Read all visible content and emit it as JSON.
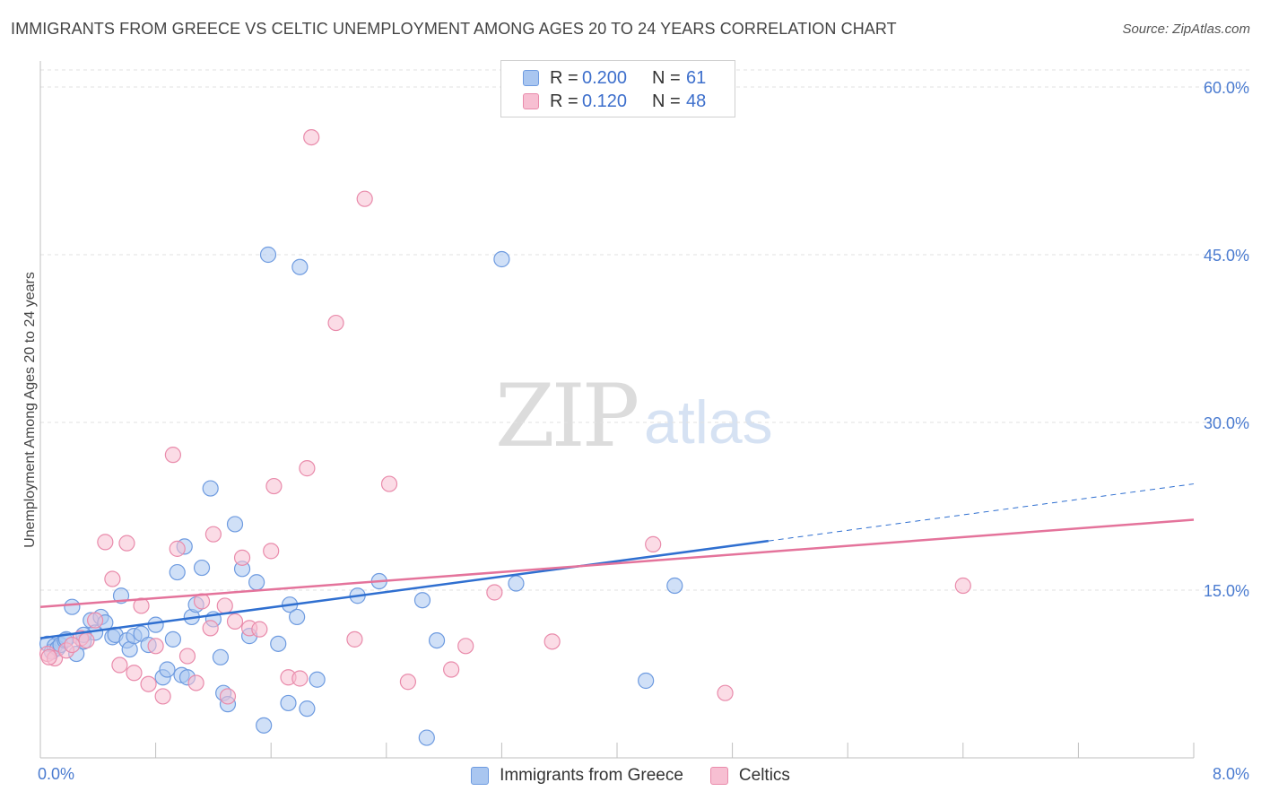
{
  "header": {
    "title": "IMMIGRANTS FROM GREECE VS CELTIC UNEMPLOYMENT AMONG AGES 20 TO 24 YEARS CORRELATION CHART",
    "source": "Source: ZipAtlas.com"
  },
  "watermark": {
    "zip": "ZIP",
    "atlas": "atlas"
  },
  "legend": {
    "rows": [
      {
        "r_label": "R =",
        "r_value": "0.200",
        "n_label": "N =",
        "n_value": "61",
        "color": "#a9c6f0",
        "border": "#6e9be0"
      },
      {
        "r_label": "R =",
        "r_value": "0.120",
        "n_label": "N =",
        "n_value": "48",
        "color": "#f7bfd2",
        "border": "#e98bab"
      }
    ]
  },
  "bottom_legend": {
    "items": [
      {
        "label": "Immigrants from Greece",
        "color": "#a9c6f0",
        "border": "#6e9be0"
      },
      {
        "label": "Celtics",
        "color": "#f7bfd2",
        "border": "#e98bab"
      }
    ]
  },
  "chart_data": {
    "type": "scatter",
    "title": "IMMIGRANTS FROM GREECE VS CELTIC UNEMPLOYMENT AMONG AGES 20 TO 24 YEARS CORRELATION CHART",
    "xlabel": "",
    "ylabel": "Unemployment Among Ages 20 to 24 years",
    "xlim": [
      0,
      8
    ],
    "ylim": [
      0,
      60
    ],
    "x_tick_labels": [
      "0.0%",
      "8.0%"
    ],
    "y_tick_values": [
      15,
      30,
      45,
      60
    ],
    "y_tick_labels": [
      "15.0%",
      "30.0%",
      "45.0%",
      "60.0%"
    ],
    "grid": true,
    "series": [
      {
        "name": "Immigrants from Greece",
        "color": "#6e9be0",
        "fill": "#a9c6f0",
        "line_color": "#2f6fd0",
        "trend": {
          "x0": 0.0,
          "y0": 10.7,
          "x1": 5.05,
          "y1": 19.4,
          "dash_to_x": 8.0,
          "dash_to_y": 24.5
        },
        "points": [
          [
            0.05,
            10.2
          ],
          [
            0.08,
            9.5
          ],
          [
            0.1,
            10.0
          ],
          [
            0.12,
            9.8
          ],
          [
            0.14,
            10.1
          ],
          [
            0.17,
            10.5
          ],
          [
            0.18,
            10.6
          ],
          [
            0.22,
            13.5
          ],
          [
            0.25,
            9.3
          ],
          [
            0.3,
            10.4
          ],
          [
            0.35,
            12.3
          ],
          [
            0.38,
            11.2
          ],
          [
            0.42,
            12.6
          ],
          [
            0.45,
            12.1
          ],
          [
            0.5,
            10.8
          ],
          [
            0.52,
            11.0
          ],
          [
            0.56,
            14.5
          ],
          [
            0.6,
            10.5
          ],
          [
            0.62,
            9.7
          ],
          [
            0.65,
            10.9
          ],
          [
            0.7,
            11.1
          ],
          [
            0.75,
            10.1
          ],
          [
            0.8,
            11.9
          ],
          [
            0.85,
            7.2
          ],
          [
            0.88,
            7.9
          ],
          [
            0.92,
            10.6
          ],
          [
            0.95,
            16.6
          ],
          [
            0.98,
            7.4
          ],
          [
            1.0,
            18.9
          ],
          [
            1.05,
            12.6
          ],
          [
            1.08,
            13.7
          ],
          [
            1.12,
            17.0
          ],
          [
            1.18,
            24.1
          ],
          [
            1.2,
            12.4
          ],
          [
            1.25,
            9.0
          ],
          [
            1.27,
            5.8
          ],
          [
            1.3,
            4.8
          ],
          [
            1.35,
            20.9
          ],
          [
            1.4,
            16.9
          ],
          [
            1.45,
            10.9
          ],
          [
            1.5,
            15.7
          ],
          [
            1.55,
            2.9
          ],
          [
            1.58,
            45.0
          ],
          [
            1.65,
            10.2
          ],
          [
            1.72,
            4.9
          ],
          [
            1.73,
            13.7
          ],
          [
            1.78,
            12.6
          ],
          [
            1.8,
            43.9
          ],
          [
            1.85,
            4.4
          ],
          [
            1.92,
            7.0
          ],
          [
            2.2,
            14.5
          ],
          [
            2.35,
            15.8
          ],
          [
            2.65,
            14.1
          ],
          [
            2.68,
            1.8
          ],
          [
            2.75,
            10.5
          ],
          [
            3.2,
            44.6
          ],
          [
            3.3,
            15.6
          ],
          [
            4.2,
            6.9
          ],
          [
            4.4,
            15.4
          ],
          [
            0.3,
            11.0
          ],
          [
            1.02,
            7.2
          ]
        ]
      },
      {
        "name": "Celtics",
        "color": "#e98bab",
        "fill": "#f7bfd2",
        "line_color": "#e4739b",
        "trend": {
          "x0": 0.0,
          "y0": 13.5,
          "x1": 8.0,
          "y1": 21.3
        },
        "points": [
          [
            0.05,
            9.3
          ],
          [
            0.1,
            8.9
          ],
          [
            0.18,
            9.6
          ],
          [
            0.28,
            10.7
          ],
          [
            0.32,
            10.5
          ],
          [
            0.38,
            12.3
          ],
          [
            0.45,
            19.3
          ],
          [
            0.5,
            16.0
          ],
          [
            0.55,
            8.3
          ],
          [
            0.6,
            19.2
          ],
          [
            0.65,
            7.6
          ],
          [
            0.7,
            13.6
          ],
          [
            0.75,
            6.6
          ],
          [
            0.8,
            10.0
          ],
          [
            0.85,
            5.5
          ],
          [
            0.92,
            27.1
          ],
          [
            0.95,
            18.7
          ],
          [
            1.02,
            9.1
          ],
          [
            1.08,
            6.7
          ],
          [
            1.12,
            14.0
          ],
          [
            1.18,
            11.6
          ],
          [
            1.2,
            20.0
          ],
          [
            1.28,
            13.6
          ],
          [
            1.3,
            5.5
          ],
          [
            1.35,
            12.2
          ],
          [
            1.4,
            17.9
          ],
          [
            1.45,
            11.6
          ],
          [
            1.52,
            11.5
          ],
          [
            1.6,
            18.5
          ],
          [
            1.62,
            24.3
          ],
          [
            1.72,
            7.2
          ],
          [
            1.8,
            7.1
          ],
          [
            1.85,
            25.9
          ],
          [
            1.88,
            55.5
          ],
          [
            2.05,
            38.9
          ],
          [
            2.18,
            10.6
          ],
          [
            2.25,
            50.0
          ],
          [
            2.42,
            24.5
          ],
          [
            2.55,
            6.8
          ],
          [
            2.85,
            7.9
          ],
          [
            2.95,
            10.0
          ],
          [
            3.15,
            14.8
          ],
          [
            3.55,
            10.4
          ],
          [
            4.25,
            19.1
          ],
          [
            4.75,
            5.8
          ],
          [
            6.4,
            15.4
          ],
          [
            0.06,
            9.0
          ],
          [
            0.22,
            10.1
          ]
        ]
      }
    ]
  }
}
